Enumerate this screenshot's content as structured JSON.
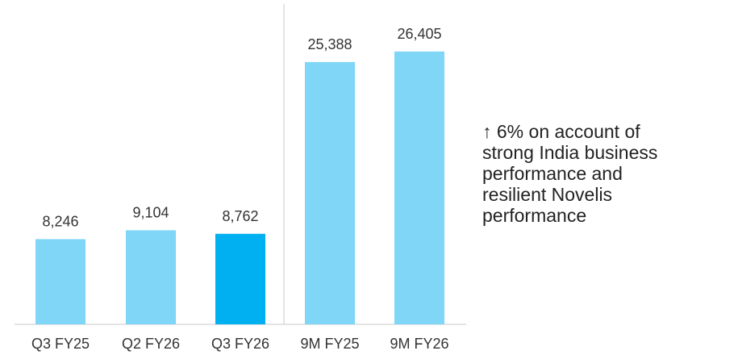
{
  "chart_data": {
    "type": "bar",
    "categories": [
      "Q3 FY25",
      "Q2 FY26",
      "Q3 FY26",
      "9M FY25",
      "9M FY26"
    ],
    "values": [
      8246,
      9104,
      8762,
      25388,
      26405
    ],
    "value_labels": [
      "8,246",
      "9,104",
      "8,762",
      "25,388",
      "26,405"
    ],
    "highlighted_category": "Q3 FY26",
    "ylim": [
      0,
      31000
    ],
    "grid": false,
    "groups": [
      {
        "categories": [
          "Q3 FY25",
          "Q2 FY26",
          "Q3 FY26"
        ]
      },
      {
        "categories": [
          "9M FY25",
          "9M FY26"
        ]
      }
    ],
    "colors": {
      "bar": "#7fd6f7",
      "bar_highlight": "#00b0f0",
      "axis": "#c8c8c8",
      "label": "#333333"
    }
  },
  "annotation": {
    "lines": [
      "↑ 6% on account of",
      "strong India business",
      "performance and",
      "resilient Novelis",
      "performance"
    ]
  }
}
